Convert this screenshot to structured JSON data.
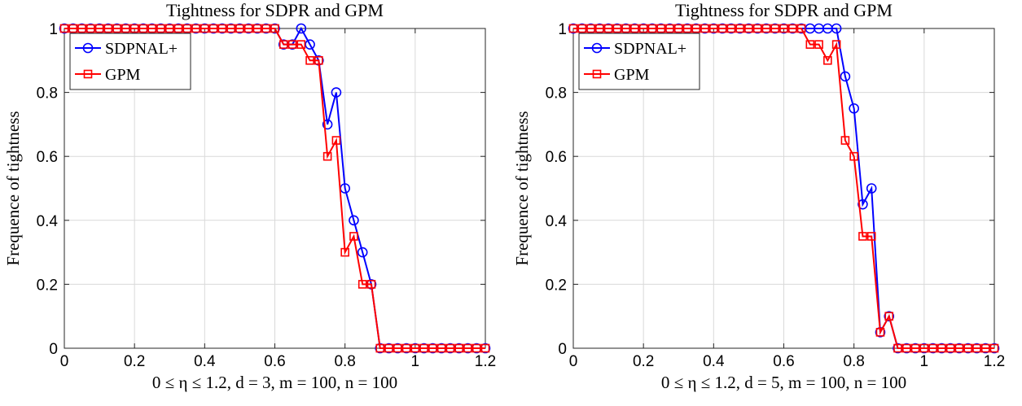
{
  "chart_data": [
    {
      "type": "line",
      "title": "Tightness for SDPR and GPM",
      "xlabel": "0 ≤ η ≤ 1.2, d = 3, m = 100, n = 100",
      "ylabel": "Frequence of tightness",
      "xlim": [
        0,
        1.2
      ],
      "ylim": [
        0,
        1
      ],
      "xticks": [
        0,
        0.2,
        0.4,
        0.6,
        0.8,
        1,
        1.2
      ],
      "xtick_labels": [
        "0",
        "0.2",
        "0.4",
        "0.6",
        "0.8",
        "1",
        "1.2"
      ],
      "yticks": [
        0,
        0.2,
        0.4,
        0.6,
        0.8,
        1
      ],
      "ytick_labels": [
        "0",
        "0.2",
        "0.4",
        "0.6",
        "0.8",
        "1"
      ],
      "grid": true,
      "legend": "top-left",
      "x": [
        0,
        0.025,
        0.05,
        0.075,
        0.1,
        0.125,
        0.15,
        0.175,
        0.2,
        0.225,
        0.25,
        0.275,
        0.3,
        0.325,
        0.35,
        0.375,
        0.4,
        0.425,
        0.45,
        0.475,
        0.5,
        0.525,
        0.55,
        0.575,
        0.6,
        0.625,
        0.65,
        0.675,
        0.7,
        0.725,
        0.75,
        0.775,
        0.8,
        0.825,
        0.85,
        0.875,
        0.9,
        0.925,
        0.95,
        0.975,
        1,
        1.025,
        1.05,
        1.075,
        1.1,
        1.125,
        1.15,
        1.175,
        1.2
      ],
      "series": [
        {
          "name": "SDPNAL+",
          "color": "#0000ff",
          "marker": "circle",
          "values": [
            1,
            1,
            1,
            1,
            1,
            1,
            1,
            1,
            1,
            1,
            1,
            1,
            1,
            1,
            1,
            1,
            1,
            1,
            1,
            1,
            1,
            1,
            1,
            1,
            1,
            0.95,
            0.95,
            1,
            0.95,
            0.9,
            0.7,
            0.8,
            0.5,
            0.4,
            0.3,
            0.2,
            0,
            0,
            0,
            0,
            0,
            0,
            0,
            0,
            0,
            0,
            0,
            0,
            0
          ]
        },
        {
          "name": "GPM",
          "color": "#ff0000",
          "marker": "square",
          "values": [
            1,
            1,
            1,
            1,
            1,
            1,
            1,
            1,
            1,
            1,
            1,
            1,
            1,
            1,
            1,
            1,
            1,
            1,
            1,
            1,
            1,
            1,
            1,
            1,
            1,
            0.95,
            0.95,
            0.95,
            0.9,
            0.9,
            0.6,
            0.65,
            0.3,
            0.35,
            0.2,
            0.2,
            0,
            0,
            0,
            0,
            0,
            0,
            0,
            0,
            0,
            0,
            0,
            0,
            0
          ]
        }
      ]
    },
    {
      "type": "line",
      "title": "Tightness for SDPR and GPM",
      "xlabel": "0 ≤ η ≤ 1.2, d = 5, m = 100, n = 100",
      "ylabel": "Frequence of tightness",
      "xlim": [
        0,
        1.2
      ],
      "ylim": [
        0,
        1
      ],
      "xticks": [
        0,
        0.2,
        0.4,
        0.6,
        0.8,
        1,
        1.2
      ],
      "xtick_labels": [
        "0",
        "0.2",
        "0.4",
        "0.6",
        "0.8",
        "1",
        "1.2"
      ],
      "yticks": [
        0,
        0.2,
        0.4,
        0.6,
        0.8,
        1
      ],
      "ytick_labels": [
        "0",
        "0.2",
        "0.4",
        "0.6",
        "0.8",
        "1"
      ],
      "grid": true,
      "legend": "top-left",
      "x": [
        0,
        0.025,
        0.05,
        0.075,
        0.1,
        0.125,
        0.15,
        0.175,
        0.2,
        0.225,
        0.25,
        0.275,
        0.3,
        0.325,
        0.35,
        0.375,
        0.4,
        0.425,
        0.45,
        0.475,
        0.5,
        0.525,
        0.55,
        0.575,
        0.6,
        0.625,
        0.65,
        0.675,
        0.7,
        0.725,
        0.75,
        0.775,
        0.8,
        0.825,
        0.85,
        0.875,
        0.9,
        0.925,
        0.95,
        0.975,
        1,
        1.025,
        1.05,
        1.075,
        1.1,
        1.125,
        1.15,
        1.175,
        1.2
      ],
      "series": [
        {
          "name": "SDPNAL+",
          "color": "#0000ff",
          "marker": "circle",
          "values": [
            1,
            1,
            1,
            1,
            1,
            1,
            1,
            1,
            1,
            1,
            1,
            1,
            1,
            1,
            1,
            1,
            1,
            1,
            1,
            1,
            1,
            1,
            1,
            1,
            1,
            1,
            1,
            1,
            1,
            1,
            1,
            0.85,
            0.75,
            0.45,
            0.5,
            0.05,
            0.1,
            0,
            0,
            0,
            0,
            0,
            0,
            0,
            0,
            0,
            0,
            0,
            0
          ]
        },
        {
          "name": "GPM",
          "color": "#ff0000",
          "marker": "square",
          "values": [
            1,
            1,
            1,
            1,
            1,
            1,
            1,
            1,
            1,
            1,
            1,
            1,
            1,
            1,
            1,
            1,
            1,
            1,
            1,
            1,
            1,
            1,
            1,
            1,
            1,
            1,
            1,
            0.95,
            0.95,
            0.9,
            0.95,
            0.65,
            0.6,
            0.35,
            0.35,
            0.05,
            0.1,
            0,
            0,
            0,
            0,
            0,
            0,
            0,
            0,
            0,
            0,
            0,
            0
          ]
        }
      ]
    }
  ]
}
